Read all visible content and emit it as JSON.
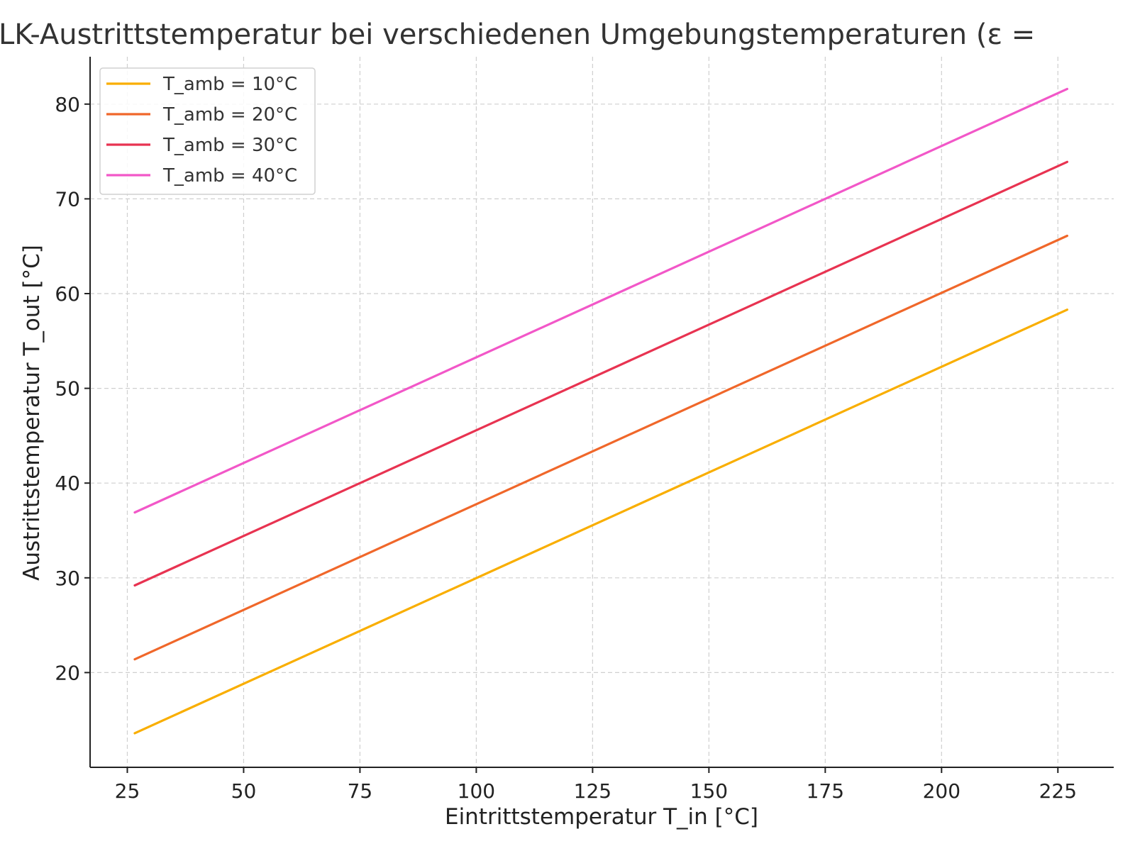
{
  "chart_data": {
    "type": "line",
    "title": "LK-Austrittstemperatur bei verschiedenen Umgebungstemperaturen (ε =",
    "xlabel": "Eintrittstemperatur T_in [°C]",
    "ylabel": "Austrittstemperatur T_out [°C]",
    "xlim": [
      17,
      237
    ],
    "ylim": [
      10,
      85
    ],
    "x_ticks": [
      25,
      50,
      75,
      100,
      125,
      150,
      175,
      200,
      225
    ],
    "y_ticks": [
      20,
      30,
      40,
      50,
      60,
      70,
      80
    ],
    "grid": true,
    "legend_position": "top-left",
    "series": [
      {
        "name": "T_amb = 10°C",
        "color": "#f9ae00",
        "x": [
          26.6,
          227
        ],
        "y": [
          13.6,
          58.3
        ]
      },
      {
        "name": "T_amb = 20°C",
        "color": "#f0672a",
        "x": [
          26.6,
          227
        ],
        "y": [
          21.4,
          66.1
        ]
      },
      {
        "name": "T_amb = 30°C",
        "color": "#e83351",
        "x": [
          26.6,
          227
        ],
        "y": [
          29.2,
          73.9
        ]
      },
      {
        "name": "T_amb = 40°C",
        "color": "#f257c8",
        "x": [
          26.6,
          227
        ],
        "y": [
          36.9,
          81.6
        ]
      }
    ]
  }
}
